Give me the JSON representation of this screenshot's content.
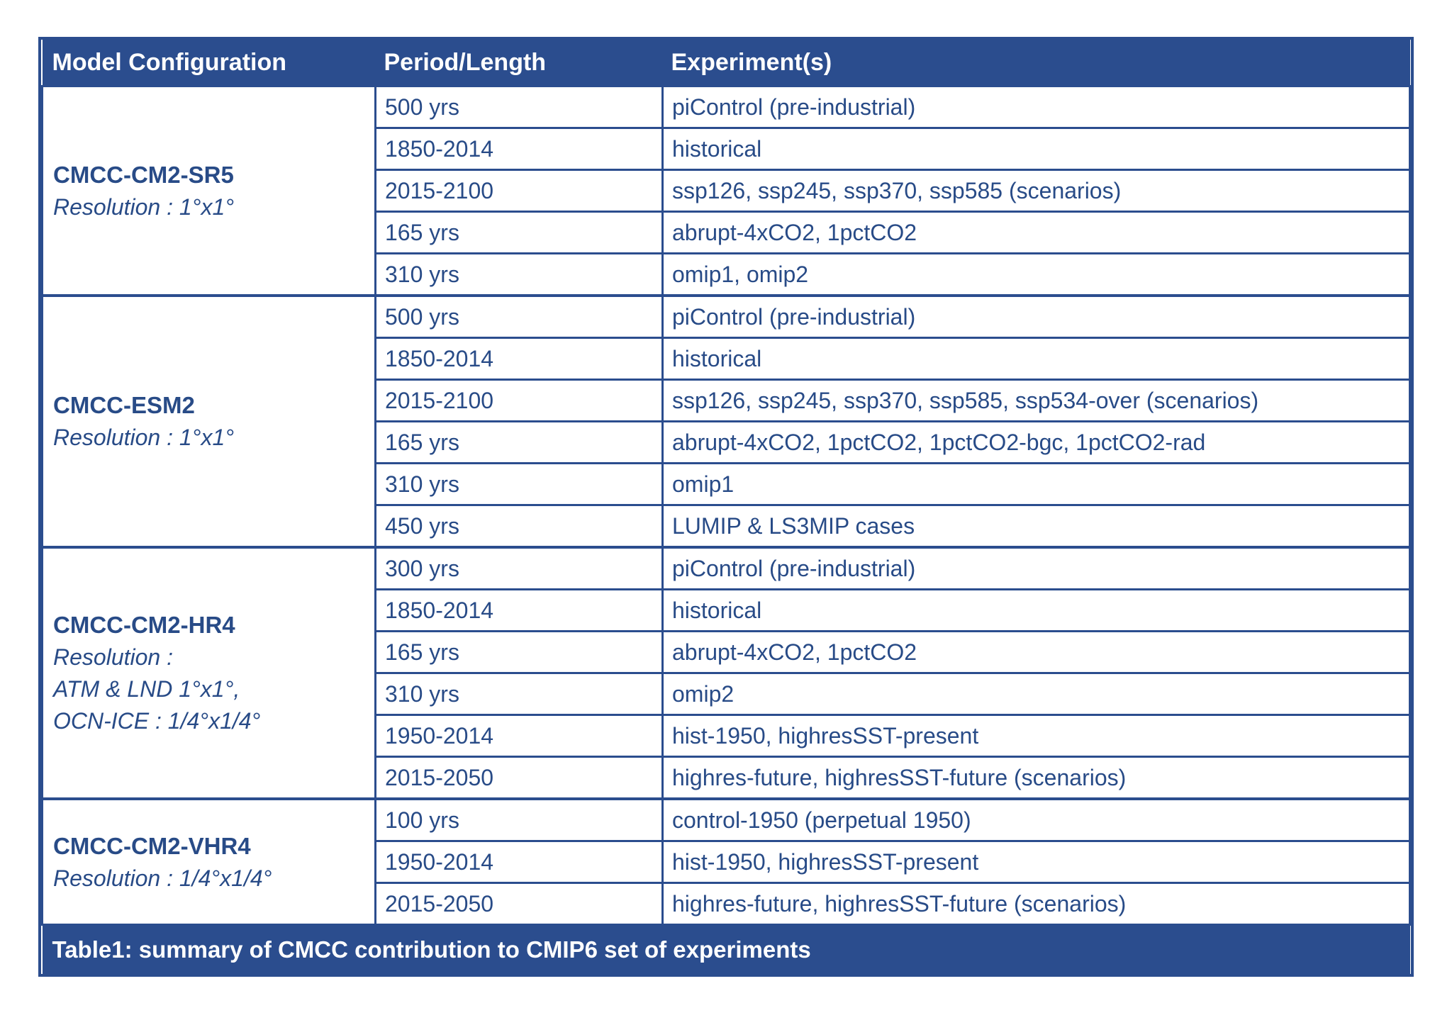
{
  "colors": {
    "accent_navy": "#2B4D8E",
    "text_navy": "#284B87",
    "header_text": "#FFFFFF",
    "background": "#FFFFFF"
  },
  "table": {
    "columns": [
      "Model Configuration",
      "Period/Length",
      "Experiment(s)"
    ],
    "groups": [
      {
        "model": "CMCC-CM2-SR5",
        "resolution_lines": [
          "Resolution : 1°x1°"
        ],
        "rows": [
          {
            "period": "500 yrs",
            "experiments": "piControl (pre-industrial)"
          },
          {
            "period": "1850-2014",
            "experiments": "historical"
          },
          {
            "period": "2015-2100",
            "experiments": "ssp126, ssp245, ssp370, ssp585 (scenarios)"
          },
          {
            "period": "165 yrs",
            "experiments": "abrupt-4xCO2, 1pctCO2"
          },
          {
            "period": "310 yrs",
            "experiments": "omip1, omip2"
          }
        ]
      },
      {
        "model": "CMCC-ESM2",
        "resolution_lines": [
          "Resolution : 1°x1°"
        ],
        "rows": [
          {
            "period": "500 yrs",
            "experiments": "piControl (pre-industrial)"
          },
          {
            "period": "1850-2014",
            "experiments": "historical"
          },
          {
            "period": "2015-2100",
            "experiments": "ssp126, ssp245, ssp370, ssp585, ssp534-over (scenarios)"
          },
          {
            "period": "165 yrs",
            "experiments": "abrupt-4xCO2, 1pctCO2, 1pctCO2-bgc, 1pctCO2-rad"
          },
          {
            "period": "310 yrs",
            "experiments": "omip1"
          },
          {
            "period": "450 yrs",
            "experiments": "LUMIP & LS3MIP cases"
          }
        ]
      },
      {
        "model": "CMCC-CM2-HR4",
        "resolution_lines": [
          "Resolution :",
          "ATM & LND 1°x1°,",
          "OCN-ICE : 1/4°x1/4°"
        ],
        "rows": [
          {
            "period": "300 yrs",
            "experiments": "piControl (pre-industrial)"
          },
          {
            "period": "1850-2014",
            "experiments": "historical"
          },
          {
            "period": "165 yrs",
            "experiments": "abrupt-4xCO2, 1pctCO2"
          },
          {
            "period": "310 yrs",
            "experiments": "omip2"
          },
          {
            "period": "1950-2014",
            "experiments": "hist-1950, highresSST-present"
          },
          {
            "period": "2015-2050",
            "experiments": "highres-future, highresSST-future (scenarios)"
          }
        ]
      },
      {
        "model": "CMCC-CM2-VHR4",
        "resolution_lines": [
          "Resolution : 1/4°x1/4°"
        ],
        "rows": [
          {
            "period": "100 yrs",
            "experiments": "control-1950 (perpetual 1950)"
          },
          {
            "period": "1950-2014",
            "experiments": "hist-1950, highresSST-present"
          },
          {
            "period": "2015-2050",
            "experiments": "highres-future, highresSST-future (scenarios)"
          }
        ]
      }
    ],
    "caption": "Table1: summary of CMCC contribution to CMIP6 set of experiments"
  }
}
